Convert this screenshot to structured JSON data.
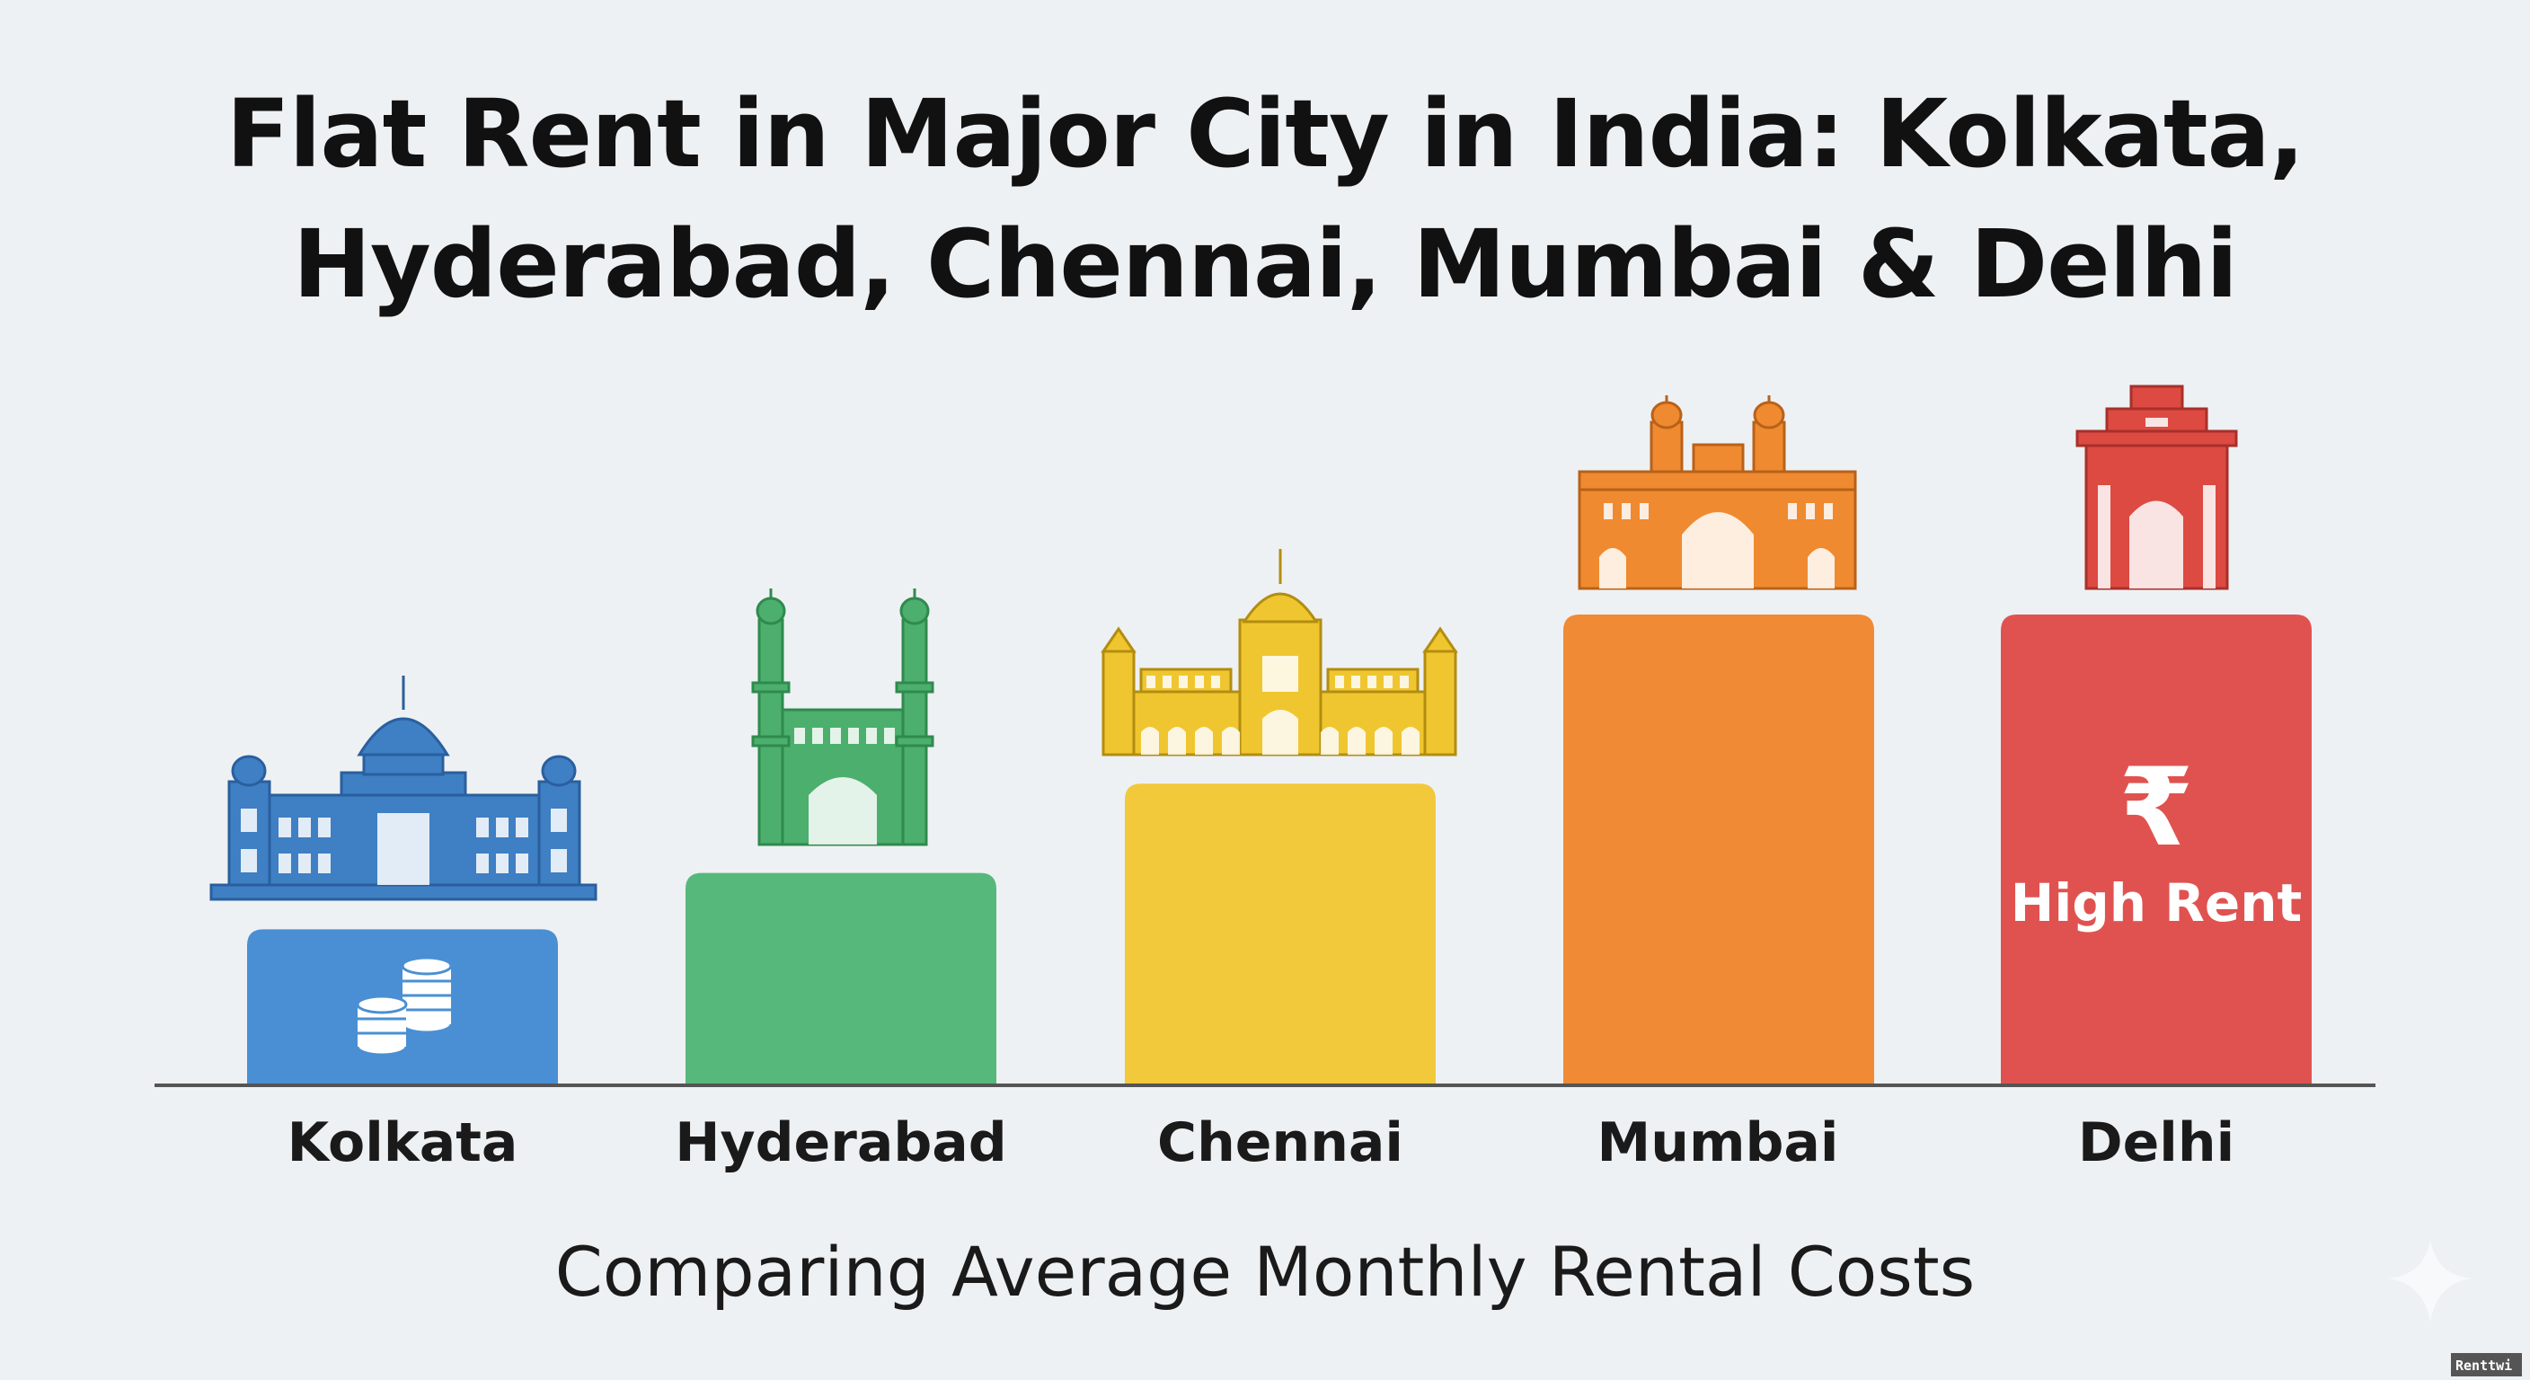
{
  "chart_data": {
    "type": "bar",
    "title": "Flat Rent in Major City in India: Kolkata, Hyderabad, Chennai, Mumbai & Delhi",
    "title_lines": [
      "Flat Rent in Major City in India: Kolkata,",
      "Hyderabad, Chennai, Mumbai & Delhi"
    ],
    "subtitle": "Comparing Average Monthly Rental Costs",
    "categories": [
      "Kolkata",
      "Hyderabad",
      "Chennai",
      "Mumbai",
      "Delhi"
    ],
    "values": [
      33,
      45,
      64,
      100,
      100
    ],
    "ylim": [
      0,
      100
    ],
    "xlabel": "",
    "ylabel": "",
    "grid": false,
    "legend": "none",
    "colors": [
      "#4a8fd4",
      "#57b87c",
      "#f2c93a",
      "#f08a35",
      "#e05250"
    ],
    "landmark_icons": [
      "victoria-memorial-icon",
      "charminar-icon",
      "chennai-central-station-icon",
      "gateway-of-india-icon",
      "india-gate-icon"
    ],
    "annotations": {
      "kolkata_icon": "coins-icon",
      "delhi_symbol": "₹",
      "delhi_label": "High Rent"
    }
  },
  "watermark": "Renttwi",
  "background": "#eef1f3"
}
